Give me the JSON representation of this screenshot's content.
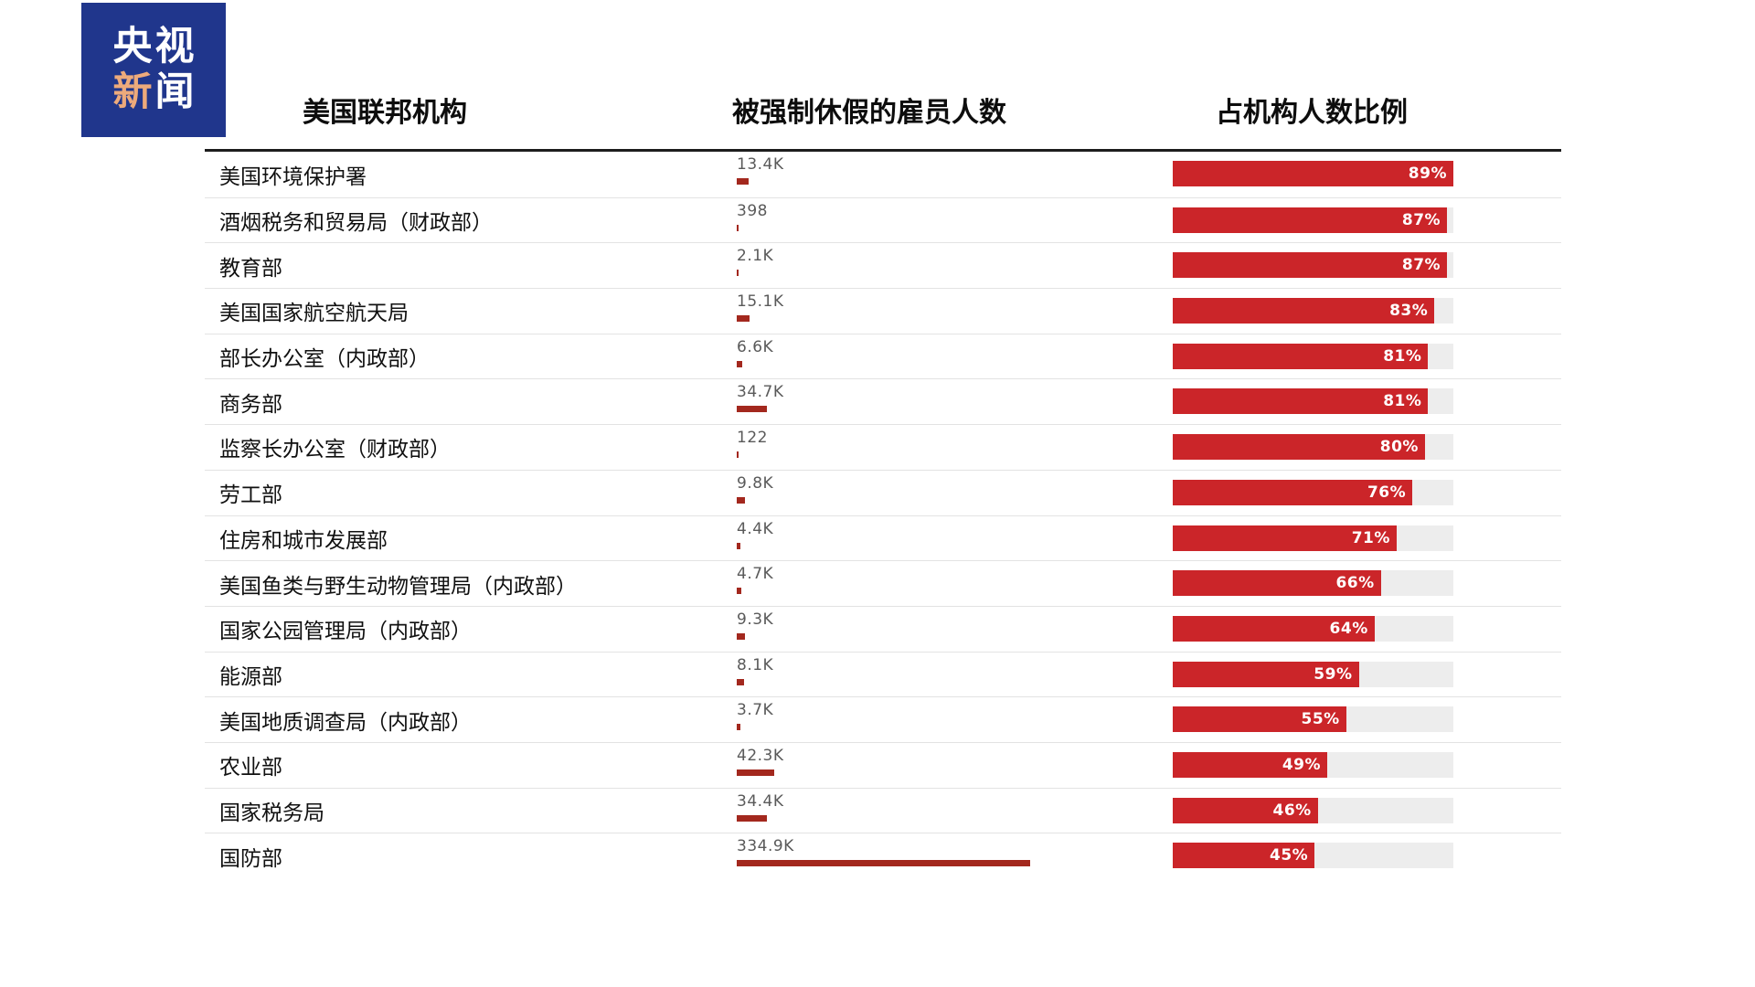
{
  "logo": {
    "line1": "央视",
    "line2_accent": "新",
    "line2_rest": "闻"
  },
  "colors": {
    "logo_bg": "#20368c",
    "logo_accent": "#edaa7b",
    "count_bar": "#a3281e",
    "pct_bar": "#cb2529",
    "track_bg": "#ededed"
  },
  "chart_data": {
    "type": "bar",
    "title": "",
    "columns": [
      "美国联邦机构",
      "被强制休假的雇员人数",
      "占机构人数比例"
    ],
    "count_axis_max": 334900,
    "percent_axis_max": 89,
    "legend_position": "none",
    "grid": false,
    "rows": [
      {
        "agency": "美国环境保护署",
        "furloughed": "13.4K",
        "furloughed_value": 13400,
        "percent": 89
      },
      {
        "agency": "酒烟税务和贸易局（财政部）",
        "furloughed": "398",
        "furloughed_value": 398,
        "percent": 87
      },
      {
        "agency": "教育部",
        "furloughed": "2.1K",
        "furloughed_value": 2100,
        "percent": 87
      },
      {
        "agency": "美国国家航空航天局",
        "furloughed": "15.1K",
        "furloughed_value": 15100,
        "percent": 83
      },
      {
        "agency": "部长办公室（内政部）",
        "furloughed": "6.6K",
        "furloughed_value": 6600,
        "percent": 81
      },
      {
        "agency": "商务部",
        "furloughed": "34.7K",
        "furloughed_value": 34700,
        "percent": 81
      },
      {
        "agency": "监察长办公室（财政部）",
        "furloughed": "122",
        "furloughed_value": 122,
        "percent": 80
      },
      {
        "agency": "劳工部",
        "furloughed": "9.8K",
        "furloughed_value": 9800,
        "percent": 76
      },
      {
        "agency": "住房和城市发展部",
        "furloughed": "4.4K",
        "furloughed_value": 4400,
        "percent": 71
      },
      {
        "agency": "美国鱼类与野生动物管理局（内政部）",
        "furloughed": "4.7K",
        "furloughed_value": 4700,
        "percent": 66
      },
      {
        "agency": "国家公园管理局（内政部）",
        "furloughed": "9.3K",
        "furloughed_value": 9300,
        "percent": 64
      },
      {
        "agency": "能源部",
        "furloughed": "8.1K",
        "furloughed_value": 8100,
        "percent": 59
      },
      {
        "agency": "美国地质调查局（内政部）",
        "furloughed": "3.7K",
        "furloughed_value": 3700,
        "percent": 55
      },
      {
        "agency": "农业部",
        "furloughed": "42.3K",
        "furloughed_value": 42300,
        "percent": 49
      },
      {
        "agency": "国家税务局",
        "furloughed": "34.4K",
        "furloughed_value": 34400,
        "percent": 46
      },
      {
        "agency": "国防部",
        "furloughed": "334.9K",
        "furloughed_value": 334900,
        "percent": 45
      }
    ]
  }
}
